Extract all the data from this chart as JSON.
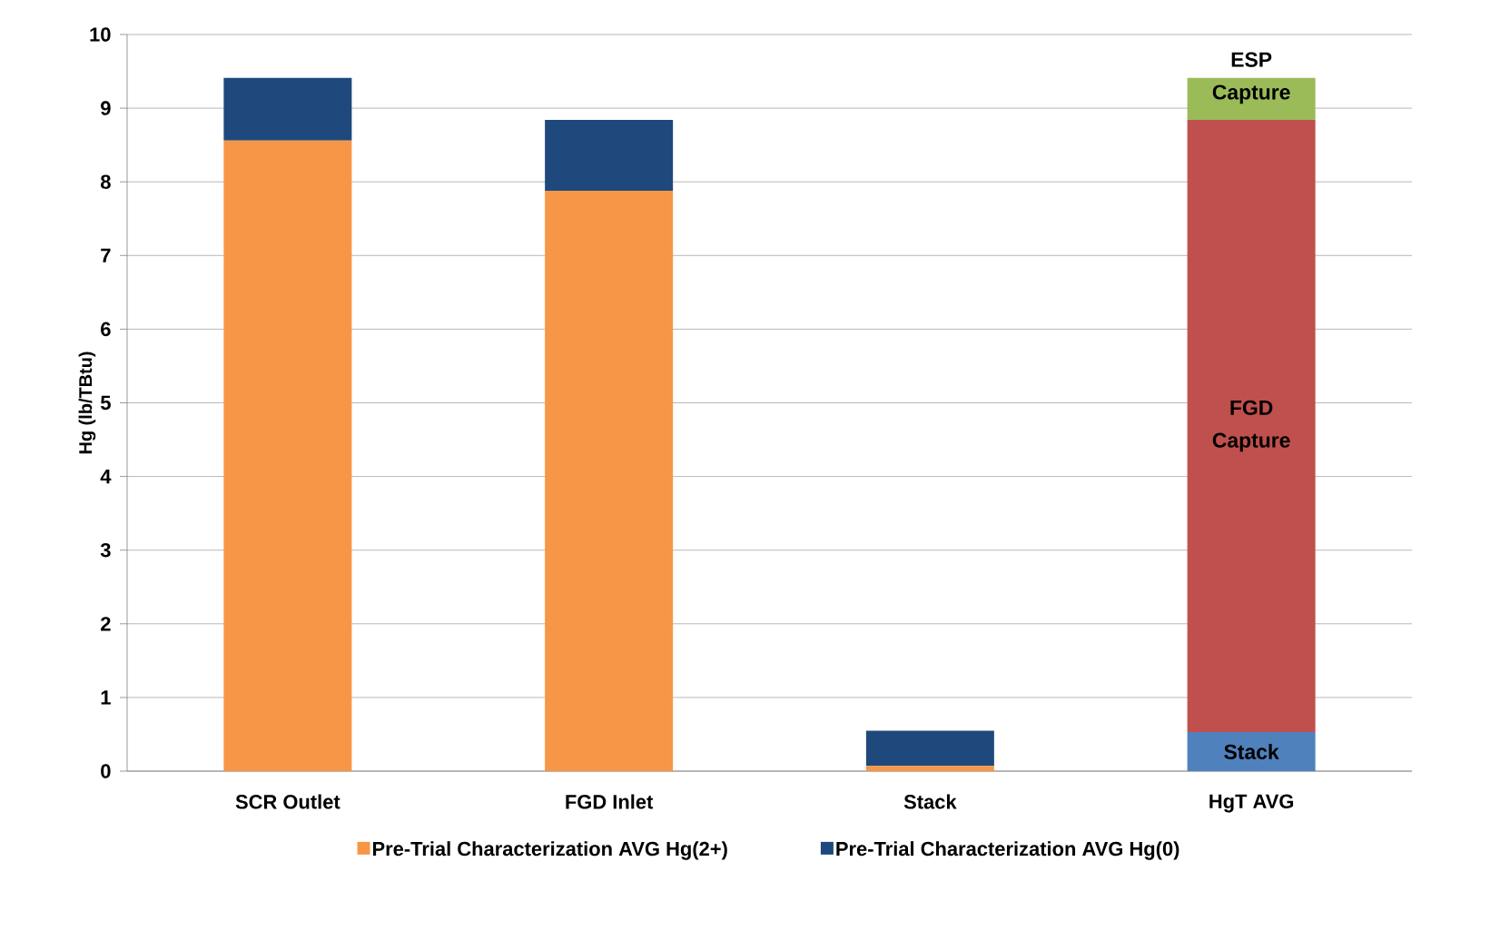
{
  "chart_data": {
    "type": "bar",
    "stacked": true,
    "ylabel": "Hg (lb/TBtu)",
    "categories": [
      "SCR Outlet",
      "FGD Inlet",
      "Stack",
      "HgT AVG"
    ],
    "series": [
      {
        "name": "Pre-Trial Characterization AVG Hg(2+)",
        "color": "#f79646",
        "values": [
          8.56,
          7.88,
          0.07,
          null
        ]
      },
      {
        "name": "Pre-Trial Characterization AVG Hg(0)",
        "color": "#1f497d",
        "values": [
          0.85,
          0.96,
          0.48,
          null
        ]
      },
      {
        "name": "Stack",
        "color": "#4f81bd",
        "values": [
          null,
          null,
          null,
          0.53
        ]
      },
      {
        "name": "FGD Capture",
        "color": "#c0504d",
        "values": [
          null,
          null,
          null,
          8.31
        ]
      },
      {
        "name": "ESP Capture",
        "color": "#9bbb59",
        "values": [
          null,
          null,
          null,
          0.57
        ]
      }
    ],
    "ylim": [
      0,
      10
    ],
    "yticks": [
      0,
      1,
      2,
      3,
      4,
      5,
      6,
      7,
      8,
      9,
      10
    ],
    "grid": "y",
    "legend": "bottom"
  }
}
